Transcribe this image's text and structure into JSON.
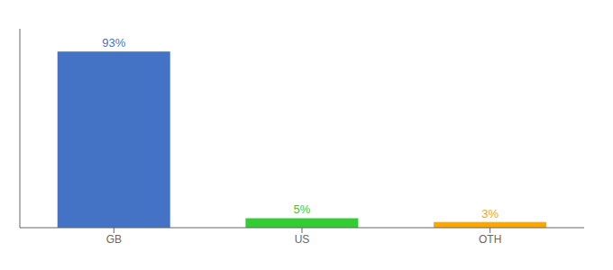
{
  "chart_data": {
    "type": "bar",
    "categories": [
      "GB",
      "US",
      "OTH"
    ],
    "values": [
      93,
      5,
      3
    ],
    "value_labels": [
      "93%",
      "5%",
      "3%"
    ],
    "colors": [
      "#4472C4",
      "#33CC33",
      "#FFA500"
    ],
    "ylim": [
      0,
      105
    ],
    "data_labels": true,
    "tick_labels": "x",
    "grid": false
  }
}
